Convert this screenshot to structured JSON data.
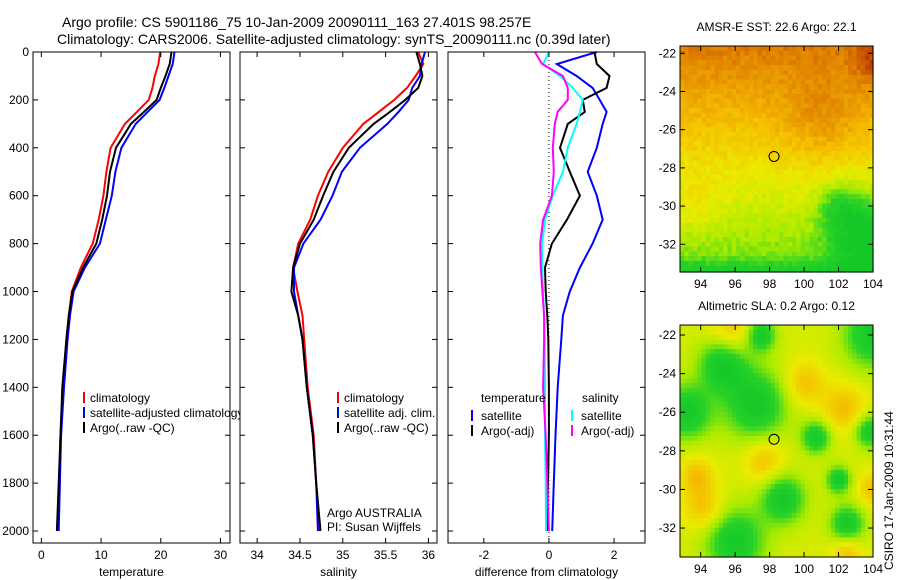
{
  "figure": {
    "title_line1": "Argo profile: CS 5901186_75 10-Jan-2009 20090111_163 27.401S 98.257E",
    "title_line2": "Climatology: CARS2006. Satellite-adjusted climatology: synTS_20090111.nc (0.39d later)",
    "footer": "CSIRO 17-Jan-2009 10:31:44"
  },
  "chart_data": [
    {
      "id": "temperature",
      "type": "line",
      "xlabel": "temperature",
      "ylabel": "",
      "xlim": [
        -1.4,
        31.6
      ],
      "ylim": [
        0,
        2050
      ],
      "y_reversed": true,
      "xticks": [
        0,
        10,
        20,
        30
      ],
      "xtick_labels": [
        "0",
        "10",
        "20",
        "30"
      ],
      "yticks": [
        0,
        200,
        400,
        600,
        800,
        1000,
        1200,
        1400,
        1600,
        1800,
        2000
      ],
      "ytick_labels": [
        "0",
        "200",
        "400",
        "600",
        "800",
        "1000",
        "1200",
        "1400",
        "1600",
        "1800",
        "2000"
      ],
      "depth": [
        0,
        50,
        100,
        150,
        200,
        250,
        300,
        400,
        500,
        600,
        700,
        800,
        900,
        1000,
        1100,
        1200,
        1400,
        1600,
        1800,
        2000
      ],
      "series": [
        {
          "name": "climatology",
          "color": "#ff0000",
          "values": [
            19.9,
            19.6,
            19.0,
            18.6,
            18.0,
            16.0,
            14.0,
            11.6,
            10.9,
            10.4,
            9.6,
            8.6,
            6.6,
            5.1,
            4.6,
            4.2,
            3.6,
            3.2,
            3.0,
            2.8
          ]
        },
        {
          "name": "satellite-adjusted climatology",
          "color": "#0000ff",
          "values": [
            22.3,
            22.0,
            21.3,
            20.6,
            19.8,
            17.8,
            15.8,
            13.4,
            12.4,
            11.8,
            10.8,
            9.8,
            7.3,
            5.4,
            4.8,
            4.4,
            3.8,
            3.3,
            3.1,
            2.9
          ]
        },
        {
          "name": "Argo(..raw -QC)",
          "color": "#000000",
          "values": [
            21.8,
            21.5,
            20.8,
            20.0,
            19.3,
            17.2,
            15.0,
            12.5,
            11.5,
            11.0,
            10.2,
            9.2,
            7.0,
            5.2,
            4.6,
            4.2,
            3.5,
            3.2,
            2.9,
            2.6
          ]
        }
      ],
      "legend": {
        "placement": "lower-middle",
        "entries": [
          "climatology",
          "satellite-adjusted climatology",
          "Argo(..raw -QC)"
        ]
      }
    },
    {
      "id": "salinity",
      "type": "line",
      "xlabel": "salinity",
      "xlim": [
        33.8,
        36.1
      ],
      "ylim": [
        0,
        2050
      ],
      "y_reversed": true,
      "xticks": [
        34,
        34.5,
        35,
        35.5,
        36
      ],
      "xtick_labels": [
        "34",
        "34.5",
        "35",
        "35.5",
        "36"
      ],
      "yticks": [
        0,
        200,
        400,
        600,
        800,
        1000,
        1200,
        1400,
        1600,
        1800,
        2000
      ],
      "depth": [
        0,
        50,
        100,
        150,
        200,
        250,
        300,
        400,
        500,
        600,
        700,
        800,
        900,
        1000,
        1100,
        1200,
        1400,
        1600,
        1800,
        2000
      ],
      "series": [
        {
          "name": "climatology",
          "color": "#ff0000",
          "values": [
            35.88,
            35.94,
            35.85,
            35.75,
            35.6,
            35.42,
            35.24,
            35.0,
            34.83,
            34.71,
            34.62,
            34.48,
            34.42,
            34.47,
            34.53,
            34.55,
            34.59,
            34.66,
            34.69,
            34.73
          ]
        },
        {
          "name": "satellite adj. clim.",
          "color": "#0000ff",
          "values": [
            35.96,
            35.92,
            35.9,
            35.81,
            35.77,
            35.65,
            35.52,
            35.2,
            34.99,
            34.88,
            34.74,
            34.54,
            34.43,
            34.43,
            34.48,
            34.53,
            34.58,
            34.65,
            34.69,
            34.71
          ]
        },
        {
          "name": "Argo(..raw -QC)",
          "color": "#000000",
          "values": [
            35.86,
            35.9,
            35.93,
            35.88,
            35.73,
            35.55,
            35.36,
            35.07,
            34.89,
            34.77,
            34.66,
            34.5,
            34.42,
            34.4,
            34.48,
            34.53,
            34.58,
            34.65,
            34.69,
            34.74
          ]
        }
      ],
      "legend": {
        "placement": "lower-right",
        "entries": [
          "climatology",
          "satellite adj. clim.",
          "Argo(..raw -QC)"
        ]
      },
      "annotations": [
        "Argo AUSTRALIA",
        "PI: Susan Wijffels"
      ]
    },
    {
      "id": "difference",
      "type": "line",
      "xlabel": "difference from climatology",
      "xlim": [
        -3.1,
        2.95
      ],
      "ylim": [
        0,
        2050
      ],
      "y_reversed": true,
      "xticks": [
        -2,
        0,
        2
      ],
      "xtick_labels": [
        "-2",
        "0",
        "2"
      ],
      "yticks": [
        0,
        200,
        400,
        600,
        800,
        1000,
        1200,
        1400,
        1600,
        1800,
        2000
      ],
      "depth": [
        0,
        50,
        100,
        150,
        200,
        250,
        300,
        400,
        500,
        600,
        700,
        800,
        900,
        1000,
        1100,
        1200,
        1400,
        1600,
        1800,
        2000
      ],
      "series": [
        {
          "name": "temperature satellite",
          "color": "#0000ff",
          "values": [
            1.47,
            0.24,
            0.85,
            1.34,
            1.56,
            1.77,
            1.65,
            1.47,
            1.19,
            1.47,
            1.65,
            1.34,
            0.95,
            0.64,
            0.43,
            0.38,
            0.27,
            0.2,
            0.15,
            0.1
          ]
        },
        {
          "name": "temperature Argo(-adj)",
          "color": "#000000",
          "values": [
            1.4,
            1.47,
            1.86,
            1.77,
            1.04,
            1.1,
            0.58,
            0.34,
            0.64,
            0.95,
            0.55,
            0.09,
            -0.12,
            -0.1,
            -0.05,
            -0.02,
            0.0,
            0.0,
            -0.03,
            -0.05
          ]
        },
        {
          "name": "salinity satellite",
          "color": "#00ffff",
          "values": [
            0.0,
            -0.18,
            0.34,
            0.73,
            1.04,
            0.95,
            0.85,
            0.58,
            0.43,
            0.12,
            -0.12,
            -0.21,
            -0.21,
            -0.18,
            -0.15,
            -0.13,
            -0.12,
            -0.12,
            -0.1,
            -0.09
          ]
        },
        {
          "name": "salinity Argo(-adj)",
          "color": "#ff00ff",
          "values": [
            -0.43,
            -0.21,
            0.43,
            0.58,
            0.58,
            0.27,
            0.18,
            0.12,
            0.15,
            0.09,
            -0.18,
            -0.27,
            -0.25,
            -0.2,
            -0.15,
            -0.15,
            -0.18,
            -0.1,
            -0.05,
            0.0
          ]
        }
      ],
      "legend": {
        "placement": "lower-middle",
        "temperature_header": "temperature",
        "salinity_header": "salinity",
        "temperature_entries": [
          "satellite",
          "Argo(-adj)"
        ],
        "salinity_entries": [
          "satellite",
          "Argo(-adj)"
        ]
      }
    },
    {
      "id": "sst-map",
      "type": "heatmap",
      "title": "AMSR-E SST: 22.6 Argo: 22.1",
      "xlim": [
        92.8,
        104
      ],
      "ylim": [
        -33.45,
        -21.62
      ],
      "xticks": [
        94,
        96,
        98,
        100,
        102,
        104
      ],
      "xtick_labels": [
        "94",
        "96",
        "98",
        "100",
        "102",
        "104"
      ],
      "yticks": [
        -22,
        -24,
        -26,
        -28,
        -30,
        -32
      ],
      "ytick_labels": [
        "-22",
        "-24",
        "-26",
        "-28",
        "-30",
        "-32"
      ],
      "marker": {
        "lon": 98.257,
        "lat": -27.401
      }
    },
    {
      "id": "sla-map",
      "type": "heatmap",
      "title": "Altimetric SLA: 0.2 Argo: 0.12",
      "xlim": [
        92.8,
        104
      ],
      "ylim": [
        -33.5,
        -21.48
      ],
      "xticks": [
        94,
        96,
        98,
        100,
        102,
        104
      ],
      "xtick_labels": [
        "94",
        "96",
        "98",
        "100",
        "102",
        "104"
      ],
      "yticks": [
        -22,
        -24,
        -26,
        -28,
        -30,
        -32
      ],
      "ytick_labels": [
        "-22",
        "-24",
        "-26",
        "-28",
        "-30",
        "-32"
      ],
      "marker": {
        "lon": 98.257,
        "lat": -27.401
      }
    }
  ]
}
